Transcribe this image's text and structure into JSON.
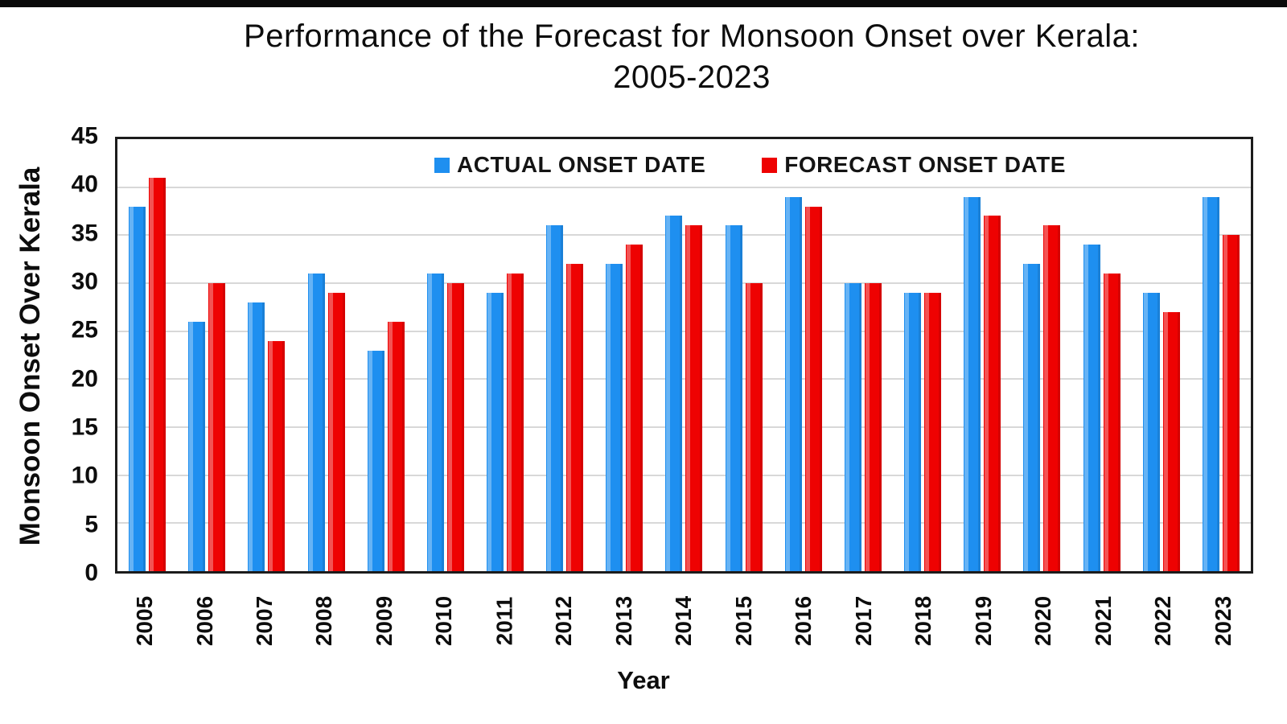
{
  "title": {
    "line1": "Performance of the Forecast for Monsoon Onset over Kerala:",
    "line2": "2005-2023"
  },
  "chart_data": {
    "type": "bar",
    "title": "Performance of the Forecast for Monsoon Onset over Kerala: 2005-2023",
    "xlabel": "Year",
    "ylabel": "Monsoon Onset Over Kerala",
    "ylim": [
      0,
      45
    ],
    "ytick_step": 5,
    "grid": true,
    "legend_position": "top-center-inside",
    "categories": [
      "2005",
      "2006",
      "2007",
      "2008",
      "2009",
      "2010",
      "2011",
      "2012",
      "2013",
      "2014",
      "2015",
      "2016",
      "2017",
      "2018",
      "2019",
      "2020",
      "2021",
      "2022",
      "2023"
    ],
    "series": [
      {
        "name": "ACTUAL ONSET DATE",
        "color": "#1E8FF0",
        "values": [
          38,
          26,
          28,
          31,
          23,
          31,
          29,
          36,
          32,
          37,
          36,
          39,
          30,
          29,
          39,
          32,
          34,
          29,
          39
        ]
      },
      {
        "name": "FORECAST ONSET DATE",
        "color": "#EE0202",
        "values": [
          41,
          30,
          24,
          29,
          26,
          30,
          31,
          32,
          34,
          36,
          30,
          38,
          30,
          29,
          37,
          36,
          31,
          27,
          35
        ]
      }
    ],
    "frame_color": "#1C1C1C",
    "gridline_color": "#D8D8D8"
  }
}
